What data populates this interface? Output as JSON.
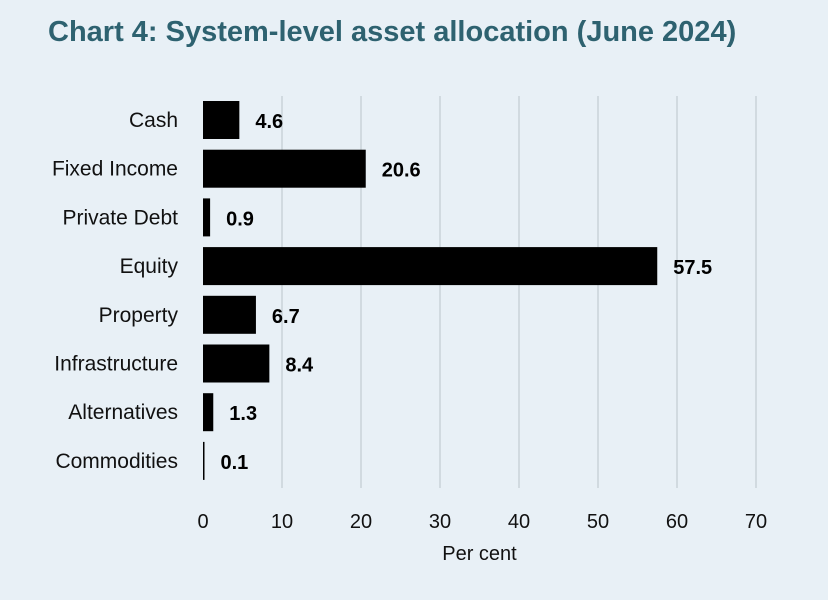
{
  "chart_data": {
    "type": "bar",
    "orientation": "horizontal",
    "title": "Chart 4: System-level asset allocation (June 2024)",
    "xlabel": "Per cent",
    "ylabel": "",
    "categories": [
      "Cash",
      "Fixed Income",
      "Private Debt",
      "Equity",
      "Property",
      "Infrastructure",
      "Alternatives",
      "Commodities"
    ],
    "values": [
      4.6,
      20.6,
      0.9,
      57.5,
      6.7,
      8.4,
      1.3,
      0.1
    ],
    "value_labels": [
      "4.6",
      "20.6",
      "0.9",
      "57.5",
      "6.7",
      "8.4",
      "1.3",
      "0.1"
    ],
    "xlim": [
      0,
      70
    ],
    "xticks": [
      "0",
      "10",
      "20",
      "30",
      "40",
      "50",
      "60",
      "70"
    ],
    "grid": "vertical",
    "legend": "none",
    "colors": {
      "bar": "#000000",
      "title": "#2e6270",
      "background": "#e8f0f6",
      "grid": "#c9d3d9"
    }
  }
}
